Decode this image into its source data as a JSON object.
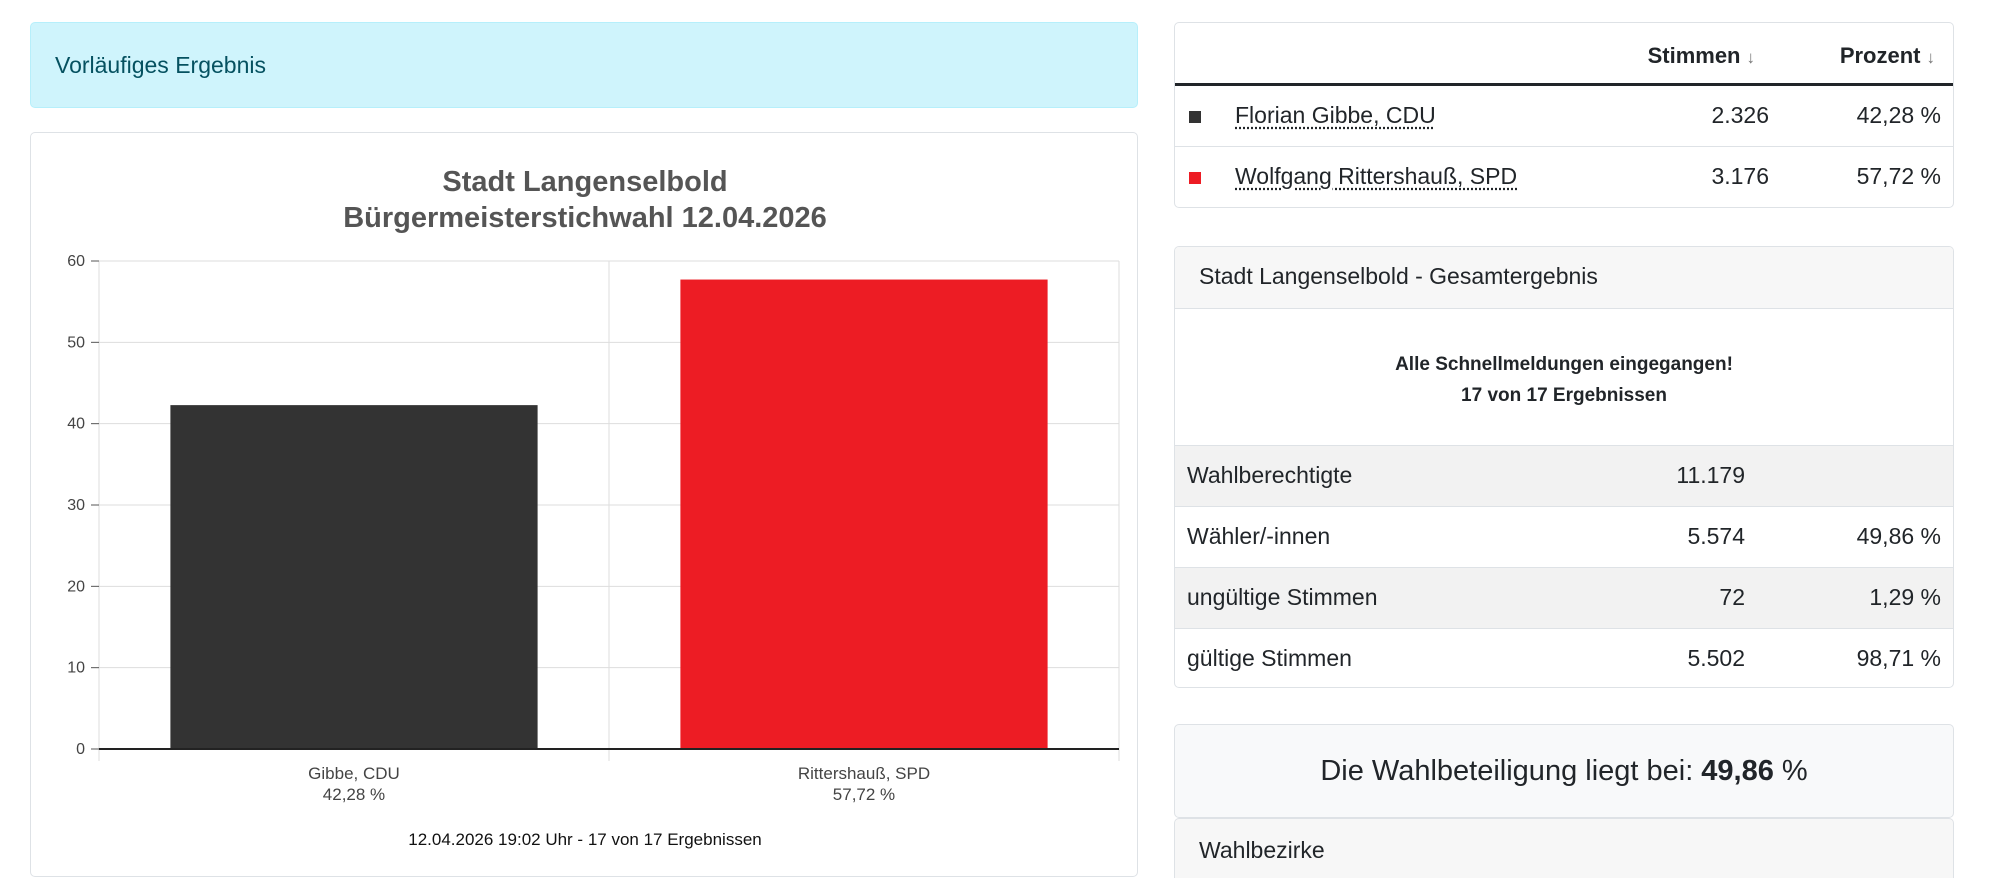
{
  "alert": {
    "text": "Vorläufiges Ergebnis"
  },
  "candidates_table": {
    "headers": {
      "stimmen": "Stimmen",
      "prozent": "Prozent"
    },
    "sort_icon": "↓",
    "rows": [
      {
        "name": "Florian Gibbe, CDU",
        "votes": "2.326",
        "percent": "42,28 %",
        "color": "#333333"
      },
      {
        "name": "Wolfgang Rittershauß, SPD",
        "votes": "3.176",
        "percent": "57,72 %",
        "color": "#ed1c24"
      }
    ]
  },
  "result": {
    "header": "Stadt Langenselbold - Gesamtergebnis",
    "notice_line1": "Alle Schnellmeldungen eingegangen!",
    "notice_line2": "17 von 17 Ergebnissen",
    "rows": [
      {
        "label": "Wahlberechtigte",
        "value": "11.179",
        "percent": ""
      },
      {
        "label": "Wähler/-innen",
        "value": "5.574",
        "percent": "49,86 %"
      },
      {
        "label": "ungültige Stimmen",
        "value": "72",
        "percent": "1,29 %"
      },
      {
        "label": "gültige Stimmen",
        "value": "5.502",
        "percent": "98,71 %"
      }
    ]
  },
  "turnout": {
    "prefix": "Die Wahlbeteiligung liegt bei:",
    "value": "49,86",
    "unit": "%"
  },
  "districts": {
    "header": "Wahlbezirke"
  },
  "chart_data": {
    "type": "bar",
    "title": "Stadt Langenselbold",
    "subtitle": "Bürgermeisterstichwahl 12.04.2026",
    "categories": [
      "Gibbe, CDU",
      "Rittershauß, SPD"
    ],
    "category_sublabels": [
      "42,28 %",
      "57,72 %"
    ],
    "values": [
      42.28,
      57.72
    ],
    "colors": [
      "#333333",
      "#ed1c24"
    ],
    "ylim": [
      0,
      60
    ],
    "yticks": [
      0,
      10,
      20,
      30,
      40,
      50,
      60
    ],
    "grid": true,
    "footer": "12.04.2026 19:02 Uhr - 17 von 17 Ergebnissen"
  }
}
